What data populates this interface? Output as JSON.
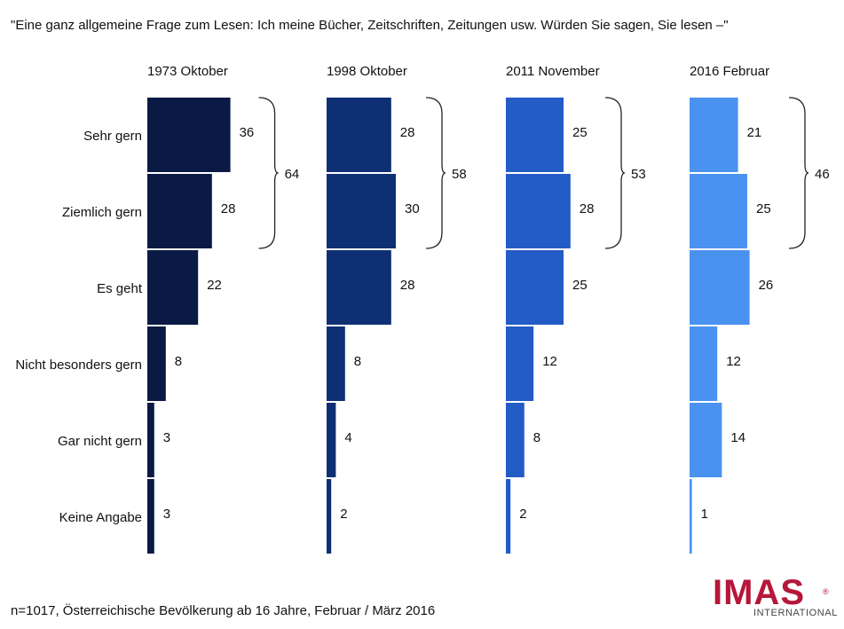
{
  "question": "\"Eine ganz allgemeine Frage zum Lesen: Ich meine Bücher, Zeitschriften, Zeitungen usw. Würden Sie sagen, Sie lesen –\"",
  "footer": "n=1017, Österreichische Bevölkerung ab 16 Jahre, Februar / März 2016",
  "logo": {
    "word": "IMAS",
    "sub": "INTERNATIONAL",
    "reg": "®",
    "color": "#b5173a"
  },
  "chart_data": {
    "type": "bar",
    "orientation": "horizontal",
    "categories": [
      "Sehr gern",
      "Ziemlich gern",
      "Es geht",
      "Nicht besonders gern",
      "Gar nicht gern",
      "Keine Angabe"
    ],
    "series": [
      {
        "name": "1973 Oktober",
        "values": [
          36,
          28,
          22,
          8,
          3,
          3
        ],
        "bracket_total": 64,
        "color": "#0b1a45"
      },
      {
        "name": "1998 Oktober",
        "values": [
          28,
          30,
          28,
          8,
          4,
          2
        ],
        "bracket_total": 58,
        "color": "#0e2f74"
      },
      {
        "name": "2011 November",
        "values": [
          25,
          28,
          25,
          12,
          8,
          2
        ],
        "bracket_total": 53,
        "color": "#235bc7"
      },
      {
        "name": "2016 Februar",
        "values": [
          21,
          25,
          26,
          12,
          14,
          1
        ],
        "bracket_total": 46,
        "color": "#4a92f0"
      }
    ],
    "bracket_groups": [
      "Sehr gern",
      "Ziemlich gern"
    ],
    "unit": "Prozent",
    "gridlines": false,
    "legend": "none"
  }
}
